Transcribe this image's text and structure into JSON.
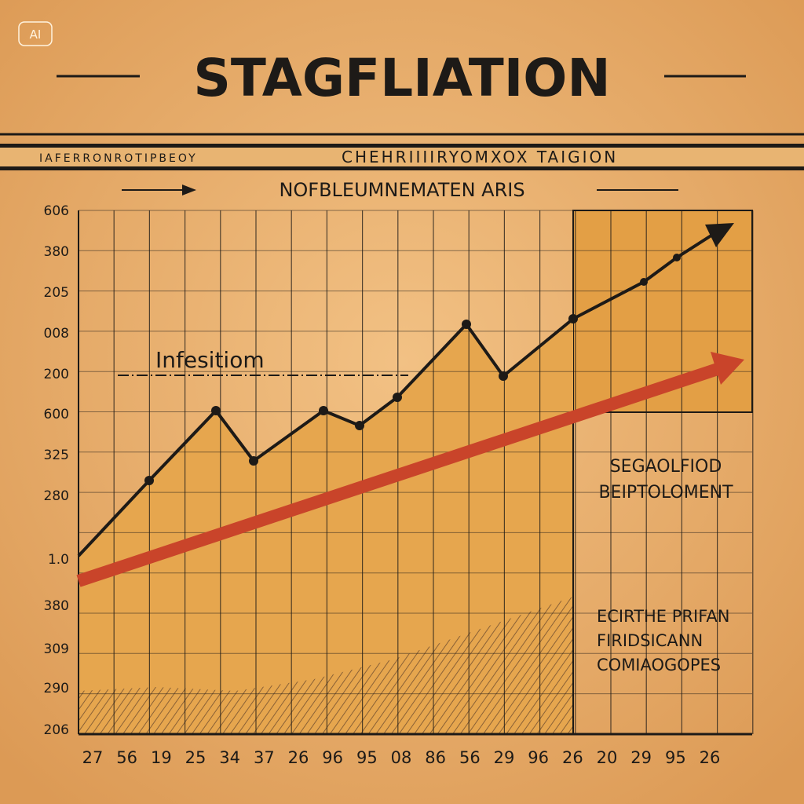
{
  "badge": "AI",
  "header": {
    "title": "STAGFLIATION",
    "banner_left": "IAFERRONROTIPBEOY",
    "banner_right": "CHEHRIIIIRYOMXOX TAIGION",
    "subtitle": "NOFBLEUMNEMATEN ARIS"
  },
  "chart": {
    "annotation": "Infesitiom",
    "side_note_1": [
      "SEGAOLFIOD",
      "BEIPTOLOMENT"
    ],
    "side_note_2": [
      "ECIRTHE PRIFAN",
      "FIRIDSICANN",
      "COMIAOGOPES"
    ],
    "y_labels": [
      "606",
      "380",
      "205",
      "008",
      "200",
      "600",
      "325",
      "280",
      "1.0",
      "380",
      "309",
      "290",
      "206"
    ],
    "x_labels": [
      "27",
      "56",
      "19",
      "25",
      "34",
      "37",
      "26",
      "96",
      "95",
      "08",
      "86",
      "56",
      "29",
      "96",
      "26",
      "20",
      "29",
      "95",
      "26"
    ]
  }
}
